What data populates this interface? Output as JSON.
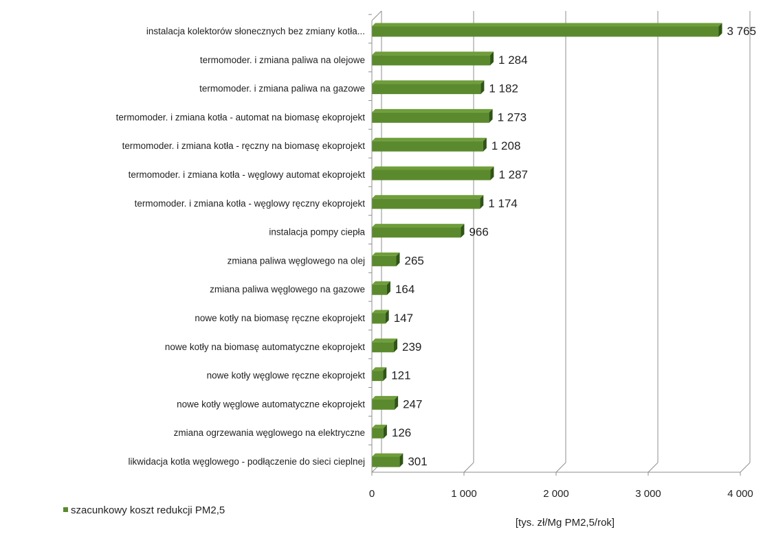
{
  "chart_data": {
    "type": "bar",
    "orientation": "horizontal",
    "three_d": true,
    "categories": [
      "instalacja kolektorów słonecznych bez zmiany kotła...",
      "termomoder. i zmiana paliwa na olejowe",
      "termomoder. i zmiana paliwa na gazowe",
      "termomoder. i zmiana kotła - automat na biomasę ekoprojekt",
      "termomoder. i zmiana kotła - ręczny na biomasę ekoprojekt",
      "termomoder. i zmiana kotła - węglowy automat ekoprojekt",
      "termomoder. i zmiana kotła - węglowy ręczny ekoprojekt",
      "instalacja pompy ciepła",
      "zmiana paliwa węglowego na olej",
      "zmiana paliwa węglowego na gazowe",
      "nowe kotły na biomasę ręczne ekoprojekt",
      "nowe kotły na biomasę automatyczne ekoprojekt",
      "nowe kotły węglowe ręczne ekoprojekt",
      "nowe kotły węglowe automatyczne ekoprojekt",
      "zmiana ogrzewania węglowego na elektryczne",
      "likwidacja kotła węglowego - podłączenie do sieci cieplnej"
    ],
    "values": [
      3765,
      1284,
      1182,
      1273,
      1208,
      1287,
      1174,
      966,
      265,
      164,
      147,
      239,
      121,
      247,
      126,
      301
    ],
    "value_labels": [
      "3 765",
      "1 284",
      "1 182",
      "1 273",
      "1 208",
      "1 287",
      "1 174",
      "966",
      "265",
      "164",
      "147",
      "239",
      "121",
      "247",
      "126",
      "301"
    ],
    "series": [
      {
        "name": "szacunkowy koszt redukcji PM2,5"
      }
    ],
    "xlim": [
      0,
      4000
    ],
    "xticks": [
      0,
      1000,
      2000,
      3000,
      4000
    ],
    "xtick_labels": [
      "0",
      "1 000",
      "2 000",
      "3 000",
      "4 000"
    ],
    "xlabel": "[tys. zł/Mg PM2,5/rok]",
    "grid": "vertical",
    "legend_position": "bottom-left",
    "colors": {
      "bar": "#5b8a2e",
      "bar_top": "#6f9e3a",
      "bar_side": "#2f5614",
      "grid": "#8c8c8c"
    }
  }
}
